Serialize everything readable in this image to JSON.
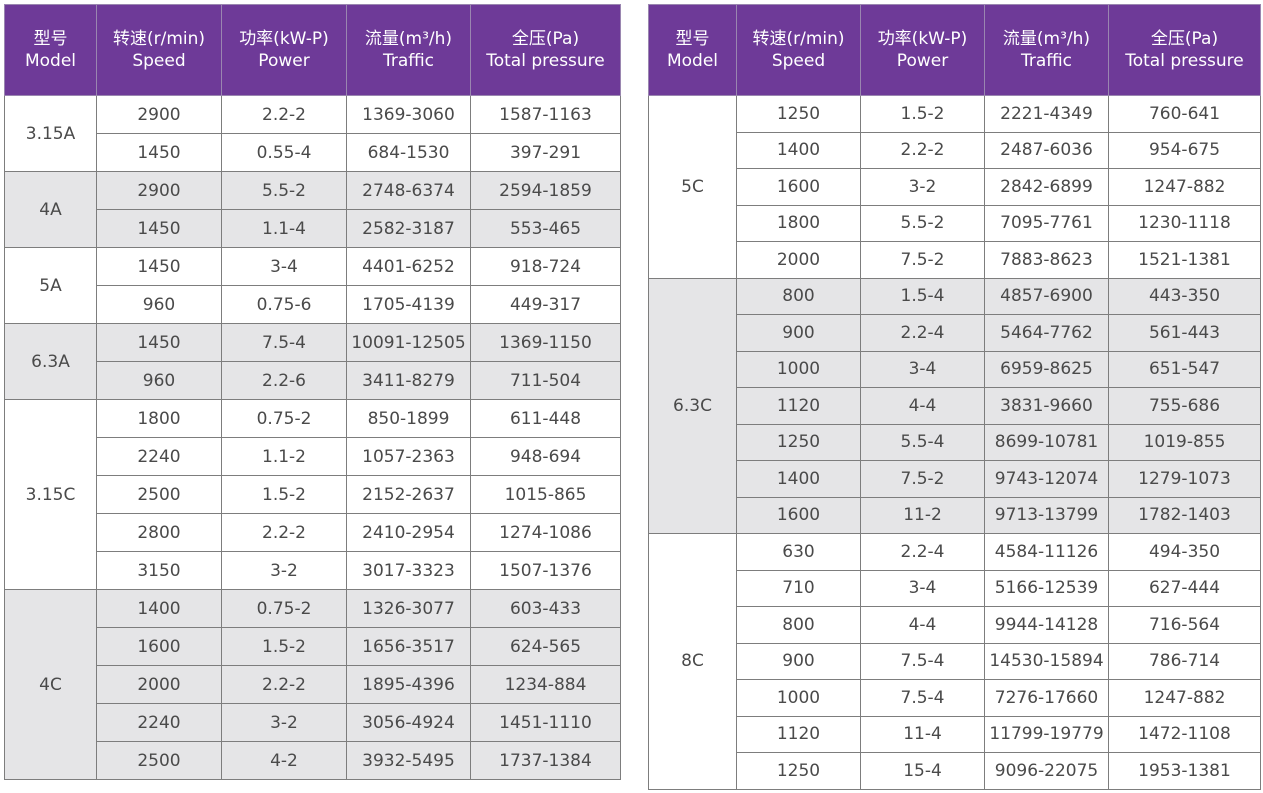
{
  "headers": [
    {
      "zh": "型号",
      "en": "Model"
    },
    {
      "zh": "转速(r/min)",
      "en": "Speed"
    },
    {
      "zh": "功率(kW-P)",
      "en": "Power"
    },
    {
      "zh": "流量(m³/h)",
      "en": "Traffic"
    },
    {
      "zh": "全压(Pa)",
      "en": "Total pressure"
    }
  ],
  "headers_right": [
    {
      "zh": "型号",
      "en": "Model"
    },
    {
      "zh": "转速(r/min)",
      "en": "Speed"
    },
    {
      "zh": "功率(kW-P)",
      "en": "Power"
    },
    {
      "zh": "流量(m³/h)",
      "en": "Traffic"
    },
    {
      "zh": "全压(Pa)",
      "en": "Total pressure"
    }
  ],
  "left_groups": [
    {
      "model": "3.15A",
      "shaded": false,
      "rows": [
        {
          "speed": "2900",
          "power": "2.2-2",
          "traffic": "1369-3060",
          "pressure": "1587-1163"
        },
        {
          "speed": "1450",
          "power": "0.55-4",
          "traffic": "684-1530",
          "pressure": "397-291"
        }
      ]
    },
    {
      "model": "4A",
      "shaded": true,
      "rows": [
        {
          "speed": "2900",
          "power": "5.5-2",
          "traffic": "2748-6374",
          "pressure": "2594-1859"
        },
        {
          "speed": "1450",
          "power": "1.1-4",
          "traffic": "2582-3187",
          "pressure": "553-465"
        }
      ]
    },
    {
      "model": "5A",
      "shaded": false,
      "rows": [
        {
          "speed": "1450",
          "power": "3-4",
          "traffic": "4401-6252",
          "pressure": "918-724"
        },
        {
          "speed": "960",
          "power": "0.75-6",
          "traffic": "1705-4139",
          "pressure": "449-317"
        }
      ]
    },
    {
      "model": "6.3A",
      "shaded": true,
      "rows": [
        {
          "speed": "1450",
          "power": "7.5-4",
          "traffic": "10091-12505",
          "pressure": "1369-1150"
        },
        {
          "speed": "960",
          "power": "2.2-6",
          "traffic": "3411-8279",
          "pressure": "711-504"
        }
      ]
    },
    {
      "model": "3.15C",
      "shaded": false,
      "rows": [
        {
          "speed": "1800",
          "power": "0.75-2",
          "traffic": "850-1899",
          "pressure": "611-448"
        },
        {
          "speed": "2240",
          "power": "1.1-2",
          "traffic": "1057-2363",
          "pressure": "948-694"
        },
        {
          "speed": "2500",
          "power": "1.5-2",
          "traffic": "2152-2637",
          "pressure": "1015-865"
        },
        {
          "speed": "2800",
          "power": "2.2-2",
          "traffic": "2410-2954",
          "pressure": "1274-1086"
        },
        {
          "speed": "3150",
          "power": "3-2",
          "traffic": "3017-3323",
          "pressure": "1507-1376"
        }
      ]
    },
    {
      "model": "4C",
      "shaded": true,
      "rows": [
        {
          "speed": "1400",
          "power": "0.75-2",
          "traffic": "1326-3077",
          "pressure": "603-433"
        },
        {
          "speed": "1600",
          "power": "1.5-2",
          "traffic": "1656-3517",
          "pressure": "624-565"
        },
        {
          "speed": "2000",
          "power": "2.2-2",
          "traffic": "1895-4396",
          "pressure": "1234-884"
        },
        {
          "speed": "2240",
          "power": "3-2",
          "traffic": "3056-4924",
          "pressure": "1451-1110"
        },
        {
          "speed": "2500",
          "power": "4-2",
          "traffic": "3932-5495",
          "pressure": "1737-1384"
        }
      ]
    }
  ],
  "right_groups": [
    {
      "model": "5C",
      "shaded": false,
      "rows": [
        {
          "speed": "1250",
          "power": "1.5-2",
          "traffic": "2221-4349",
          "pressure": "760-641"
        },
        {
          "speed": "1400",
          "power": "2.2-2",
          "traffic": "2487-6036",
          "pressure": "954-675"
        },
        {
          "speed": "1600",
          "power": "3-2",
          "traffic": "2842-6899",
          "pressure": "1247-882"
        },
        {
          "speed": "1800",
          "power": "5.5-2",
          "traffic": "7095-7761",
          "pressure": "1230-1118"
        },
        {
          "speed": "2000",
          "power": "7.5-2",
          "traffic": "7883-8623",
          "pressure": "1521-1381"
        }
      ]
    },
    {
      "model": "6.3C",
      "shaded": true,
      "rows": [
        {
          "speed": "800",
          "power": "1.5-4",
          "traffic": "4857-6900",
          "pressure": "443-350"
        },
        {
          "speed": "900",
          "power": "2.2-4",
          "traffic": "5464-7762",
          "pressure": "561-443"
        },
        {
          "speed": "1000",
          "power": "3-4",
          "traffic": "6959-8625",
          "pressure": "651-547"
        },
        {
          "speed": "1120",
          "power": "4-4",
          "traffic": "3831-9660",
          "pressure": "755-686"
        },
        {
          "speed": "1250",
          "power": "5.5-4",
          "traffic": "8699-10781",
          "pressure": "1019-855"
        },
        {
          "speed": "1400",
          "power": "7.5-2",
          "traffic": "9743-12074",
          "pressure": "1279-1073"
        },
        {
          "speed": "1600",
          "power": "11-2",
          "traffic": "9713-13799",
          "pressure": "1782-1403"
        }
      ]
    },
    {
      "model": "8C",
      "shaded": false,
      "rows": [
        {
          "speed": "630",
          "power": "2.2-4",
          "traffic": "4584-11126",
          "pressure": "494-350"
        },
        {
          "speed": "710",
          "power": "3-4",
          "traffic": "5166-12539",
          "pressure": "627-444"
        },
        {
          "speed": "800",
          "power": "4-4",
          "traffic": "9944-14128",
          "pressure": "716-564"
        },
        {
          "speed": "900",
          "power": "7.5-4",
          "traffic": "14530-15894",
          "pressure": "786-714"
        },
        {
          "speed": "1000",
          "power": "7.5-4",
          "traffic": "7276-17660",
          "pressure": "1247-882"
        },
        {
          "speed": "1120",
          "power": "11-4",
          "traffic": "11799-19779",
          "pressure": "1472-1108"
        },
        {
          "speed": "1250",
          "power": "15-4",
          "traffic": "9096-22075",
          "pressure": "1953-1381"
        }
      ]
    }
  ],
  "colors": {
    "header_bg": "#6e3a98",
    "header_text": "#ffffff",
    "shade": "#e5e5e7",
    "border": "#7d7d7d",
    "text": "#4a4a4a"
  }
}
